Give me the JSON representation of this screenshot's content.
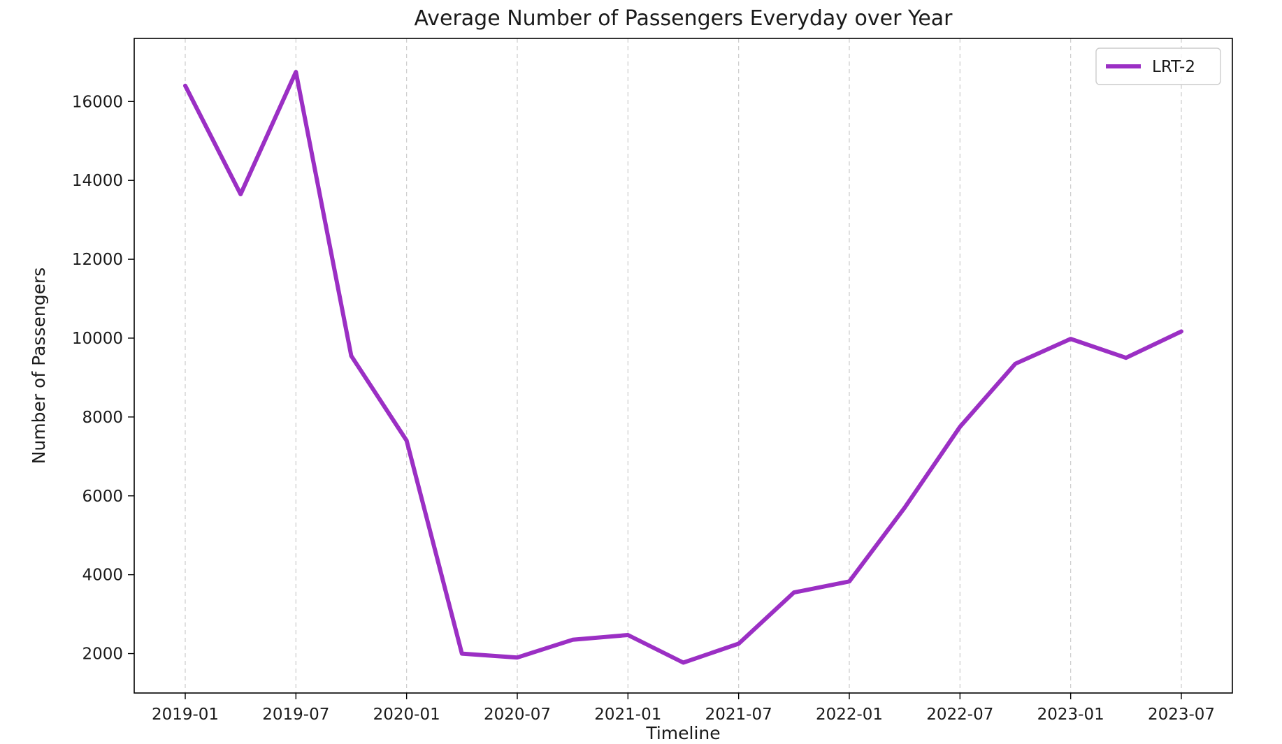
{
  "chart_data": {
    "type": "line",
    "title": "Average Number of Passengers Everyday over Year",
    "xlabel": "Timeline",
    "ylabel": "Number of Passengers",
    "x": [
      "2019-01",
      "2019-04",
      "2019-07",
      "2019-10",
      "2020-01",
      "2020-04",
      "2020-07",
      "2020-10",
      "2021-01",
      "2021-04",
      "2021-07",
      "2021-10",
      "2022-01",
      "2022-04",
      "2022-07",
      "2022-10",
      "2023-01",
      "2023-04",
      "2023-07"
    ],
    "x_ticks": [
      "2019-01",
      "2019-07",
      "2020-01",
      "2020-07",
      "2021-01",
      "2021-07",
      "2022-01",
      "2022-07",
      "2023-01",
      "2023-07"
    ],
    "y_ticks": [
      2000,
      4000,
      6000,
      8000,
      10000,
      12000,
      14000,
      16000
    ],
    "ylim": [
      1000,
      17600
    ],
    "grid": {
      "x": true,
      "y": false,
      "style": "dashed"
    },
    "legend": {
      "position": "top-right"
    },
    "series": [
      {
        "name": "LRT-2",
        "color": "#9b2fc4",
        "values": [
          16400,
          13650,
          16750,
          9550,
          7400,
          2000,
          1900,
          2350,
          2470,
          1770,
          2250,
          3550,
          3830,
          5700,
          7750,
          9350,
          9980,
          9500,
          10170
        ]
      }
    ]
  }
}
